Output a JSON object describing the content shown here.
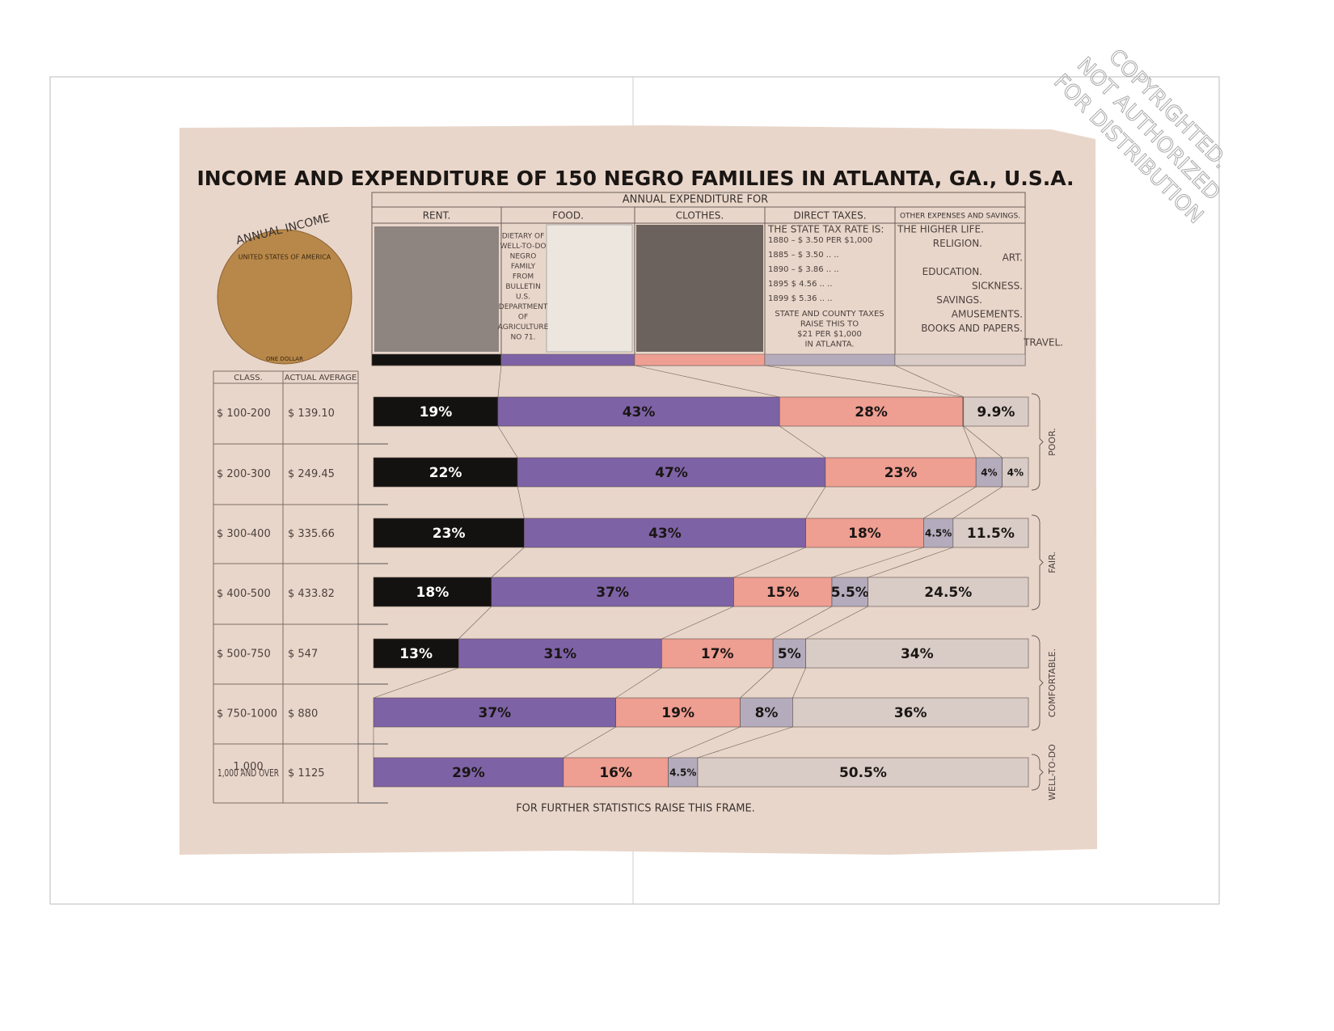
{
  "chart_data": {
    "type": "bar",
    "orientation": "horizontal",
    "stacked": true,
    "title": "INCOME AND EXPENDITURE OF 150 NEGRO FAMILIES IN ATLANTA, GA., U.S.A.",
    "subtitle": "ANNUAL EXPENDITURE FOR",
    "footer": "FOR FURTHER STATISTICS RAISE THIS FRAME.",
    "table_headers": [
      "CLASS.",
      "ACTUAL AVERAGE"
    ],
    "categories": [
      "$ 100-200",
      "$ 200-300",
      "$ 300-400",
      "$ 400-500",
      "$ 500-750",
      "$ 750-1000",
      "1,000 AND OVER"
    ],
    "averages": [
      "$ 139.10",
      "$ 249.45",
      "$ 335.66",
      "$ 433.82",
      "$ 547",
      "$ 880",
      "$ 1125"
    ],
    "groups": [
      "POOR.",
      "FAIR.",
      "COMFORTABLE.",
      "WELL-TO-DO"
    ],
    "xlim": [
      0,
      100
    ],
    "series": [
      {
        "name": "RENT.",
        "color": "#141211",
        "values": [
          19,
          22,
          23,
          18,
          13,
          null,
          null
        ],
        "value_labels": [
          "19%",
          "22%",
          "23%",
          "18%",
          "13%",
          null,
          null
        ]
      },
      {
        "name": "FOOD.",
        "color": "#7e62a6",
        "values": [
          43,
          47,
          43,
          37,
          31,
          37,
          29
        ],
        "value_labels": [
          "43%",
          "47%",
          "43%",
          "37%",
          "31%",
          "37%",
          "29%"
        ]
      },
      {
        "name": "CLOTHES.",
        "color": "#ef9e92",
        "values": [
          28,
          23,
          18,
          15,
          17,
          19,
          16
        ],
        "value_labels": [
          "28%",
          "23%",
          "18%",
          "15%",
          "17%",
          "19%",
          "16%"
        ]
      },
      {
        "name": "DIRECT TAXES.",
        "color": "#b4acbd",
        "values": [
          0.1,
          4,
          4.5,
          5.5,
          5,
          8,
          4.5
        ],
        "value_labels": [
          null,
          "4%",
          "4.5%",
          "5.5%",
          "5%",
          "8%",
          "4.5%"
        ]
      },
      {
        "name": "OTHER EXPENSES AND SAVINGS.",
        "color": "#d9ccc6",
        "values": [
          9.9,
          4,
          11.5,
          24.5,
          34,
          36,
          50.5
        ],
        "value_labels": [
          "9.9%",
          "4%",
          "11.5%",
          "24.5%",
          "34%",
          "36%",
          "50.5%"
        ]
      }
    ]
  },
  "coin": {
    "label": "ANNUAL INCOME",
    "ring": "UNITED STATES OF AMERICA",
    "bottom": "ONE DOLLAR"
  },
  "panels": {
    "food": [
      "DIETARY OF",
      "WELL-TO-DO",
      "NEGRO",
      "FAMILY",
      "FROM",
      "BULLETIN",
      "U.S.",
      "DEPARTMENT",
      "OF",
      "AGRICULTURE",
      "NO 71."
    ],
    "taxes": [
      "THE STATE TAX RATE IS:",
      "1880 – $ 3.50  PER  $1,000",
      "1885 – $ 3.50   ..     ..",
      "1890 – $ 3.86   ..     ..",
      "1895   $ 4.56   ..     ..",
      "1899   $ 5.36   ..     ..",
      "STATE AND COUNTY TAXES",
      "RAISE THIS TO",
      "$21 PER $1,000",
      "IN ATLANTA."
    ],
    "other": [
      "THE HIGHER LIFE.",
      "RELIGION.",
      "ART.",
      "EDUCATION.",
      "SICKNESS.",
      "SAVINGS.",
      "AMUSEMENTS.",
      "BOOKS AND PAPERS.",
      "TRAVEL."
    ]
  },
  "watermark": [
    "COPYRIGHTED.",
    "NOT AUTHORIZED",
    "FOR DISTRIBUTION"
  ]
}
